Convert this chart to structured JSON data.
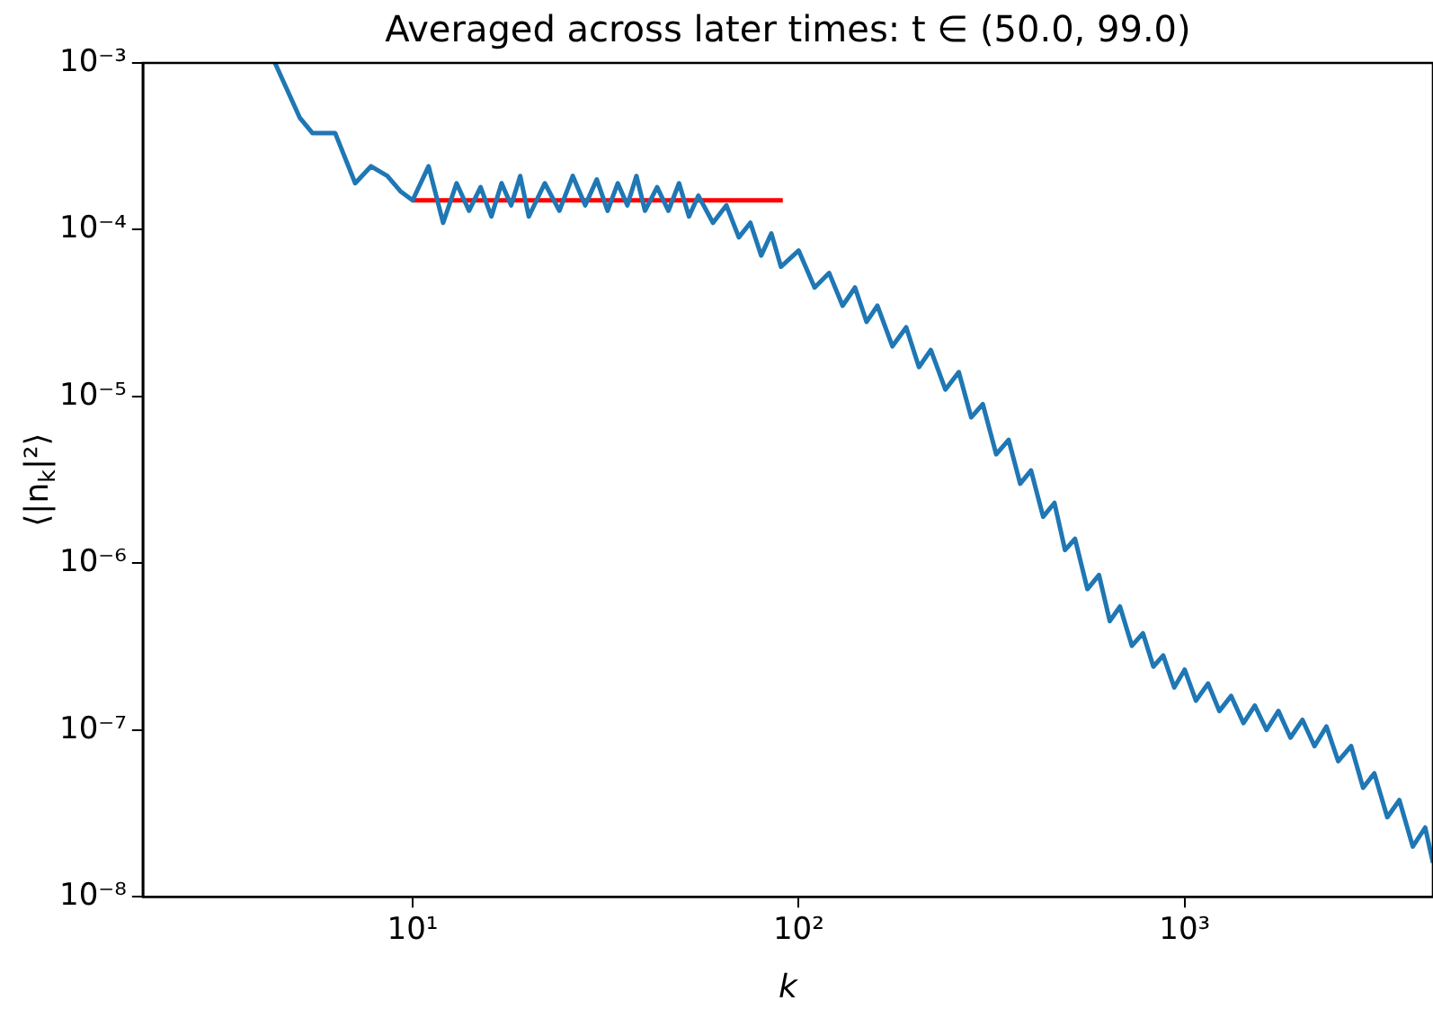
{
  "chart_data": {
    "type": "line",
    "title": "Averaged across later times: t ∈ (50.0, 99.0)",
    "xlabel": "k",
    "ylabel": "⟨|n$_{k}$|²⟩",
    "log": "xy",
    "grid": false,
    "legend": false,
    "marker": "none",
    "line_style": "solid",
    "xlim": [
      2,
      4400
    ],
    "ylim": [
      1e-08,
      0.001
    ],
    "xticks": [
      {
        "value": 10,
        "label": "10¹"
      },
      {
        "value": 100,
        "label": "10²"
      },
      {
        "value": 1000,
        "label": "10³"
      }
    ],
    "yticks": [
      {
        "value": 1e-08,
        "label": "10⁻⁸"
      },
      {
        "value": 1e-07,
        "label": "10⁻⁷"
      },
      {
        "value": 1e-06,
        "label": "10⁻⁶"
      },
      {
        "value": 1e-05,
        "label": "10⁻⁵"
      },
      {
        "value": 0.0001,
        "label": "10⁻⁴"
      },
      {
        "value": 0.001,
        "label": "10⁻³"
      }
    ],
    "series": [
      {
        "type": "line",
        "color": "#1f77b4",
        "x": [
          4.4,
          5.1,
          5.5,
          6.3,
          7.1,
          7.8,
          8.6,
          9.3,
          10,
          11,
          12,
          13,
          14,
          15,
          16,
          17,
          18,
          19,
          20,
          22,
          24,
          26,
          28,
          30,
          32,
          34,
          36,
          38,
          40,
          43,
          46,
          49,
          52,
          55,
          60,
          65,
          70,
          75,
          80,
          85,
          90,
          100,
          110,
          120,
          130,
          140,
          150,
          160,
          175,
          190,
          205,
          220,
          240,
          260,
          280,
          300,
          325,
          350,
          375,
          400,
          430,
          460,
          490,
          520,
          560,
          600,
          640,
          680,
          730,
          780,
          830,
          880,
          940,
          1000,
          1070,
          1150,
          1230,
          1320,
          1420,
          1520,
          1630,
          1750,
          1880,
          2020,
          2170,
          2330,
          2500,
          2700,
          2900,
          3100,
          3350,
          3600,
          3900,
          4200,
          4400
        ],
        "values": [
          0.001,
          0.00047,
          0.00038,
          0.00038,
          0.00019,
          0.00024,
          0.00021,
          0.00017,
          0.00015,
          0.00024,
          0.00011,
          0.00019,
          0.00013,
          0.00018,
          0.00012,
          0.00019,
          0.00014,
          0.00021,
          0.00012,
          0.00019,
          0.00013,
          0.00021,
          0.00014,
          0.0002,
          0.00013,
          0.00019,
          0.00014,
          0.00021,
          0.00013,
          0.00018,
          0.00013,
          0.00019,
          0.00012,
          0.00016,
          0.00011,
          0.00014,
          9e-05,
          0.00011,
          7e-05,
          9.5e-05,
          6e-05,
          7.5e-05,
          4.5e-05,
          5.5e-05,
          3.5e-05,
          4.5e-05,
          2.8e-05,
          3.5e-05,
          2e-05,
          2.6e-05,
          1.5e-05,
          1.9e-05,
          1.1e-05,
          1.4e-05,
          7.5e-06,
          9e-06,
          4.5e-06,
          5.5e-06,
          3e-06,
          3.6e-06,
          1.9e-06,
          2.3e-06,
          1.2e-06,
          1.4e-06,
          7e-07,
          8.5e-07,
          4.5e-07,
          5.5e-07,
          3.2e-07,
          3.8e-07,
          2.4e-07,
          2.8e-07,
          1.8e-07,
          2.3e-07,
          1.5e-07,
          1.9e-07,
          1.3e-07,
          1.6e-07,
          1.1e-07,
          1.4e-07,
          1e-07,
          1.3e-07,
          9e-08,
          1.15e-07,
          8e-08,
          1.05e-07,
          6.5e-08,
          8e-08,
          4.5e-08,
          5.5e-08,
          3e-08,
          3.8e-08,
          2e-08,
          2.6e-08,
          1.6e-08
        ]
      },
      {
        "type": "line",
        "color": "#ff0000",
        "x": [
          10,
          91
        ],
        "values": [
          0.00015,
          0.00015
        ]
      }
    ]
  }
}
